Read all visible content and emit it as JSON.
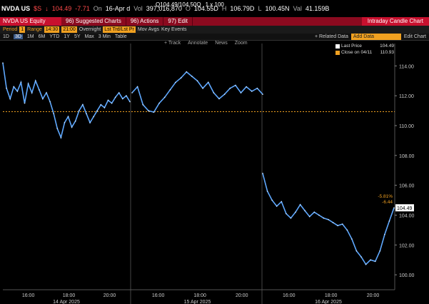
{
  "header": {
    "ticker": "NVDA US",
    "currency": "$S",
    "last": "104.49",
    "change": "-7.71",
    "on_label": "On",
    "date": "16-Apr d",
    "vol_label": "Vol",
    "volume": "397,016,870",
    "open_label": "O",
    "open": "104.55D",
    "high_label": "H",
    "high": "106.79D",
    "low_label": "L",
    "low": "100.45N",
    "val_label": "Val",
    "value": "41.159B",
    "quote": "Q104.49/104.50Q",
    "size": "1 x 100"
  },
  "toolbar": {
    "security": "NVDA US Equity",
    "suggested": "96) Suggested Charts",
    "actions": "96) Actions",
    "edit": "97) Edit",
    "title": "Intraday Candle Chart"
  },
  "settings": {
    "period_label": "Period",
    "period": "1",
    "range_label": "Range",
    "range_start": "14:30",
    "range_end": "21:00",
    "overnight": "Overnight",
    "lst": "Lst Trd/Lst Pr",
    "mov_avgs": "Mov Avgs",
    "key_events": "Key Events"
  },
  "intervals": {
    "buttons": [
      "1D",
      "3D",
      "1M",
      "6M",
      "YTD",
      "1Y",
      "5Y",
      "Max"
    ],
    "selected": "3D",
    "bar": "3 Min",
    "table": "Table",
    "related": "+ Related Data",
    "add_data": "Add Data",
    "edit_chart": "Edit Chart"
  },
  "tools": [
    "+ Track",
    "Annotate",
    "News",
    "Zoom"
  ],
  "legend": {
    "last_price_label": "Last Price",
    "last_price": "104.49",
    "close_label": "Close on 04/11",
    "close_value": "110.93"
  },
  "chart_data": {
    "type": "line",
    "ylim": [
      99,
      115.5
    ],
    "y_ticks": [
      "100.00",
      "102.00",
      "104.00",
      "106.00",
      "108.00",
      "110.00",
      "112.00",
      "114.00"
    ],
    "x_time_ticks": [
      "16:00",
      "18:00",
      "20:00",
      "16:00",
      "18:00",
      "20:00",
      "16:00",
      "18:00",
      "20:00"
    ],
    "day_labels": [
      "14 Apr 2025",
      "15 Apr 2025",
      "16 Apr 2025"
    ],
    "reference_line": 110.93,
    "last_value_label": "104.49",
    "change_pct_label": "-5.81%",
    "change_abs_label": "-6.44",
    "series": [
      {
        "values": [
          114.2,
          112.5,
          111.8,
          112.6,
          112.3,
          112.9,
          111.5,
          112.8,
          112.2,
          113.0,
          112.4,
          111.8,
          112.2,
          111.6,
          110.8,
          109.8,
          109.2,
          110.2,
          110.6,
          109.9,
          110.3,
          111.0,
          111.4,
          110.8,
          110.2,
          110.6,
          111.0,
          111.4,
          111.2,
          111.7,
          111.5,
          111.9,
          112.2,
          111.8,
          112.0,
          111.6
        ]
      },
      {
        "values": [
          112.2,
          112.6,
          111.4,
          111.0,
          110.9,
          111.5,
          111.9,
          112.4,
          112.9,
          113.2,
          113.6,
          113.3,
          113.0,
          112.5,
          112.9,
          112.2,
          111.8,
          112.1,
          112.5,
          112.7,
          112.2,
          112.6,
          112.3,
          112.5,
          112.1
        ]
      },
      {
        "values": [
          106.8,
          105.6,
          105.0,
          104.6,
          104.9,
          104.1,
          103.8,
          104.2,
          104.7,
          104.3,
          103.9,
          104.2,
          104.0,
          103.8,
          103.7,
          103.5,
          103.3,
          103.4,
          103.0,
          102.4,
          101.6,
          101.2,
          100.7,
          101.0,
          100.9,
          101.6,
          102.7,
          103.6,
          104.49
        ]
      }
    ]
  }
}
